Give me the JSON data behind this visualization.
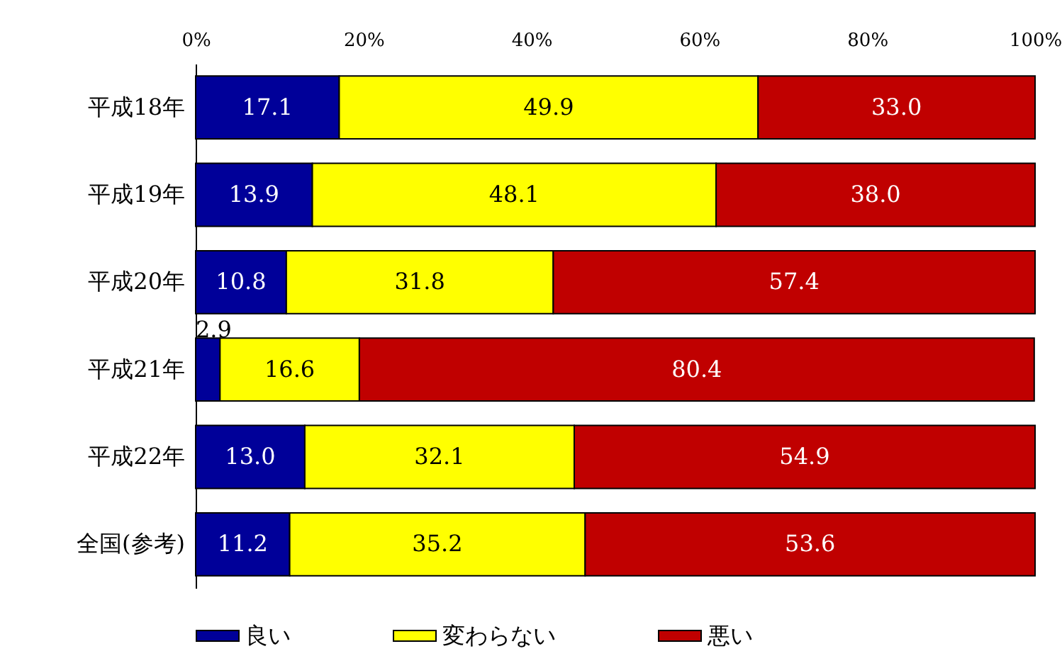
{
  "chart_data": {
    "type": "bar",
    "orientation": "horizontal",
    "stacked": true,
    "grid": false,
    "legend": "bottom",
    "categories": [
      "平成18年",
      "平成19年",
      "平成20年",
      "平成21年",
      "平成22年",
      "全国(参考)"
    ],
    "series": [
      {
        "name": "良い",
        "color": "#000099",
        "values": [
          17.1,
          13.9,
          10.8,
          2.9,
          13.0,
          11.2
        ],
        "value_labels": [
          "17.1",
          "13.9",
          "10.8",
          "2.9",
          "13.0",
          "11.2"
        ]
      },
      {
        "name": "変わらない",
        "color": "#ffff00",
        "values": [
          49.9,
          48.1,
          31.8,
          16.6,
          32.1,
          35.2
        ],
        "value_labels": [
          "49.9",
          "48.1",
          "31.8",
          "16.6",
          "32.1",
          "35.2"
        ]
      },
      {
        "name": "悪い",
        "color": "#c00000",
        "values": [
          33.0,
          38.0,
          57.4,
          80.4,
          54.9,
          53.6
        ],
        "value_labels": [
          "33.0",
          "38.0",
          "57.4",
          "80.4",
          "54.9",
          "53.6"
        ]
      }
    ],
    "xlim": [
      0,
      100
    ],
    "xticks": [
      {
        "value": 0,
        "label": "0%"
      },
      {
        "value": 20,
        "label": "20%"
      },
      {
        "value": 40,
        "label": "40%"
      },
      {
        "value": 60,
        "label": "60%"
      },
      {
        "value": 80,
        "label": "80%"
      },
      {
        "value": 100,
        "label": "100%"
      }
    ]
  }
}
